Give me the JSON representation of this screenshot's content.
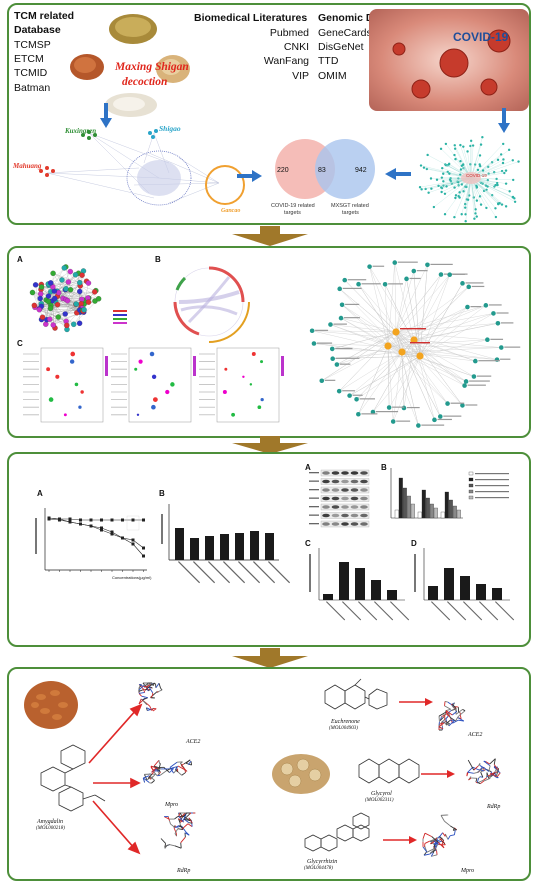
{
  "panel1": {
    "tcm": {
      "title_line1": "TCM related",
      "title_line2": "Database",
      "items": [
        "TCMSP",
        "ETCM",
        "TCMID",
        "Batman"
      ]
    },
    "decoction_line1": "Maxing Shigan",
    "decoction_line2": "decoction",
    "bio": {
      "title": "Biomedical Literatures",
      "items": [
        "Pubmed",
        "CNKI",
        "WanFang",
        "VIP"
      ]
    },
    "genomic": {
      "title": "Genomic Database",
      "items": [
        "GeneCards",
        "DisGeNet",
        "TTD",
        "OMIM"
      ]
    },
    "covid_label": "COVID-19",
    "herbs": {
      "kuxingren": "Kuxingren",
      "shigao": "Shigao",
      "mahuang": "Mahuang",
      "gancao": "Gancao"
    },
    "venn": {
      "left": "220",
      "overlap": "83",
      "right": "942",
      "left_label_1": "COVID-19 related",
      "left_label_2": "targets",
      "right_label_1": "MXSGT related",
      "right_label_2": "targets"
    },
    "covid_net_label": "COVID-19",
    "colors": {
      "venn_left": "#f4b6b0",
      "venn_right": "#a9c4ee",
      "covid_text": "#1f4e9a",
      "decoction_text": "#e0261c"
    }
  },
  "panel2": {
    "label_a": "A",
    "label_b": "B",
    "label_c": "C"
  },
  "panel3": {
    "label_a": "A",
    "label_b": "B",
    "label_a2": "A",
    "label_b2": "B",
    "label_c": "C",
    "label_d": "D",
    "x_axis_a": "Concentrations(μg/ml)"
  },
  "panel4": {
    "amygdalin_line1": "Amygdalin",
    "amygdalin_line2": "(MOL000218)",
    "euchrenone_line1": "Euchrenone",
    "euchrenone_line2": "(MOL004903)",
    "glycyrol_line1": "Glycyrol",
    "glycyrol_line2": "(MOL002311)",
    "glycyrrhizin_line1": "Glycyrrhizin",
    "glycyrrhizin_line2": "(MOL004478)",
    "targets": {
      "ace2_a": "ACE2",
      "mpro_a": "Mpro",
      "rdrp_a": "RdRp",
      "ace2_b": "ACE2",
      "rdrp_b": "RdRp",
      "mpro_b": "Mpro"
    }
  }
}
